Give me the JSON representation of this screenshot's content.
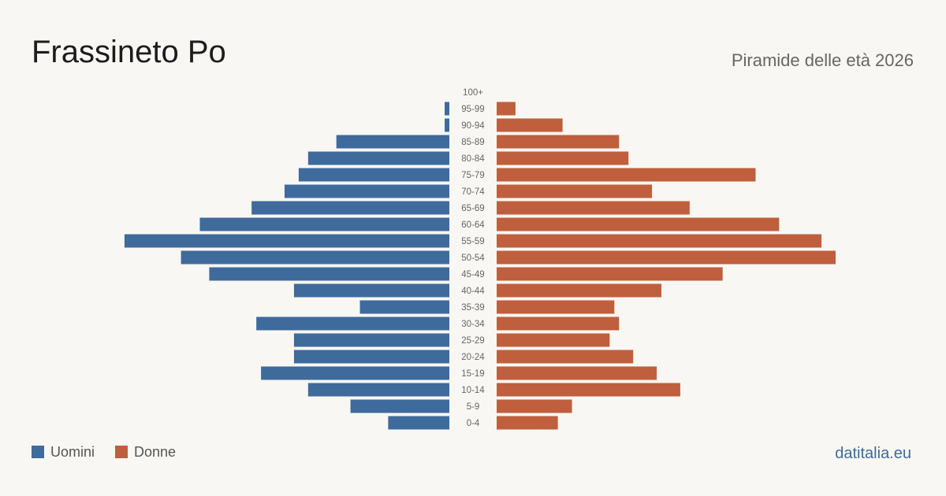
{
  "header": {
    "title": "Frassineto Po",
    "subtitle": "Piramide delle età 2026"
  },
  "legend": {
    "men_label": "Uomini",
    "women_label": "Donne"
  },
  "footer": {
    "site": "datitalia.eu"
  },
  "colors": {
    "men": "#3e6b9c",
    "women": "#bf5f3e",
    "background": "#f9f7f3"
  },
  "chart_data": {
    "type": "bar",
    "orientation": "horizontal-pyramid",
    "categories": [
      "100+",
      "95-99",
      "90-94",
      "85-89",
      "80-84",
      "75-79",
      "70-74",
      "65-69",
      "60-64",
      "55-59",
      "50-54",
      "45-49",
      "40-44",
      "35-39",
      "30-34",
      "25-29",
      "20-24",
      "15-19",
      "10-14",
      "5-9",
      "0-4"
    ],
    "series": [
      {
        "name": "Uomini",
        "color": "#3e6b9c",
        "values": [
          0,
          1,
          1,
          24,
          30,
          32,
          35,
          42,
          53,
          69,
          57,
          51,
          33,
          19,
          41,
          33,
          33,
          40,
          30,
          21,
          13
        ]
      },
      {
        "name": "Donne",
        "color": "#bf5f3e",
        "values": [
          0,
          4,
          14,
          26,
          28,
          55,
          33,
          41,
          60,
          69,
          72,
          48,
          35,
          25,
          26,
          24,
          29,
          34,
          39,
          16,
          13
        ]
      }
    ],
    "xlim": [
      0,
      72
    ],
    "grid": false,
    "legend_position": "bottom-left"
  }
}
